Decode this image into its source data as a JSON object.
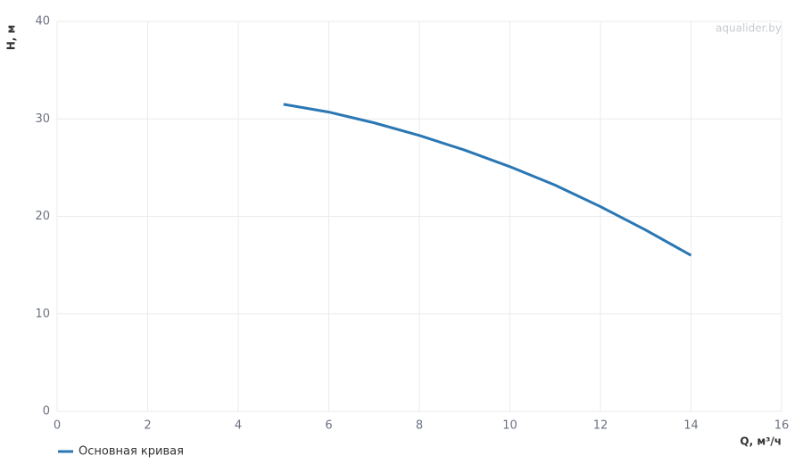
{
  "chart_data": {
    "type": "line",
    "watermark": "aqualider.by",
    "x_label": "Q, м³/ч",
    "y_label": "H, м",
    "x": [
      5,
      6,
      7,
      8,
      9,
      10,
      11,
      12,
      13,
      14
    ],
    "series": [
      {
        "name": "Основная кривая",
        "color": "#2a77b4",
        "values": [
          31.5,
          30.7,
          29.6,
          28.3,
          26.8,
          25.1,
          23.2,
          21.0,
          18.6,
          16.0
        ]
      }
    ],
    "xlim": [
      0,
      16
    ],
    "xticks": [
      0,
      2,
      4,
      6,
      8,
      10,
      12,
      14,
      16
    ],
    "ylim": [
      0,
      40
    ],
    "yticks": [
      0,
      10,
      20,
      30,
      40
    ],
    "grid": true,
    "legend": "bottom-left"
  }
}
